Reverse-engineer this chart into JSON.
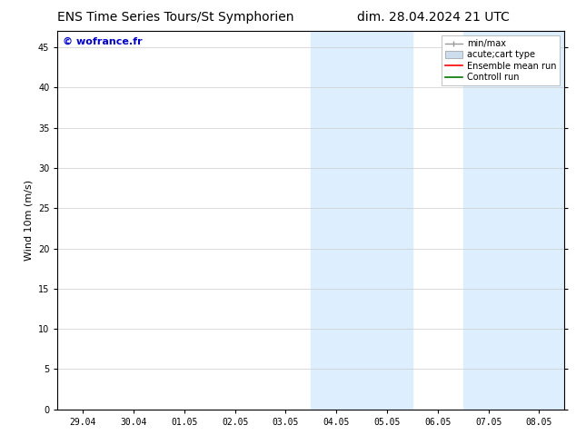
{
  "title_left": "ENS Time Series Tours/St Symphorien",
  "title_right": "dim. 28.04.2024 21 UTC",
  "ylabel": "Wind 10m (m/s)",
  "watermark": "© wofrance.fr",
  "x_tick_labels": [
    "29.04",
    "30.04",
    "01.05",
    "02.05",
    "03.05",
    "04.05",
    "05.05",
    "06.05",
    "07.05",
    "08.05"
  ],
  "x_tick_positions": [
    0,
    1,
    2,
    3,
    4,
    5,
    6,
    7,
    8,
    9
  ],
  "ylim": [
    0,
    47
  ],
  "yticks": [
    0,
    5,
    10,
    15,
    20,
    25,
    30,
    35,
    40,
    45
  ],
  "xlim": [
    -0.5,
    9.5
  ],
  "shaded_regions": [
    {
      "x_start": 4.5,
      "x_end": 6.5,
      "color": "#ddeeff"
    },
    {
      "x_start": 7.5,
      "x_end": 9.5,
      "color": "#ddeeff"
    }
  ],
  "legend_entries": [
    {
      "label": "min/max",
      "color": "#999999",
      "lw": 1.0,
      "style": "line_with_caps"
    },
    {
      "label": "acute;cart type",
      "color": "#ccddee",
      "lw": 8,
      "style": "thick"
    },
    {
      "label": "Ensemble mean run",
      "color": "#ff0000",
      "lw": 1.2,
      "style": "line"
    },
    {
      "label": "Controll run",
      "color": "#007700",
      "lw": 1.2,
      "style": "line"
    }
  ],
  "bg_color": "#ffffff",
  "plot_bg_color": "#ffffff",
  "grid_color": "#cccccc",
  "spine_color": "#000000",
  "title_fontsize": 10,
  "tick_fontsize": 7,
  "ylabel_fontsize": 8,
  "watermark_color": "#0000cc",
  "watermark_fontsize": 8,
  "legend_fontsize": 7
}
